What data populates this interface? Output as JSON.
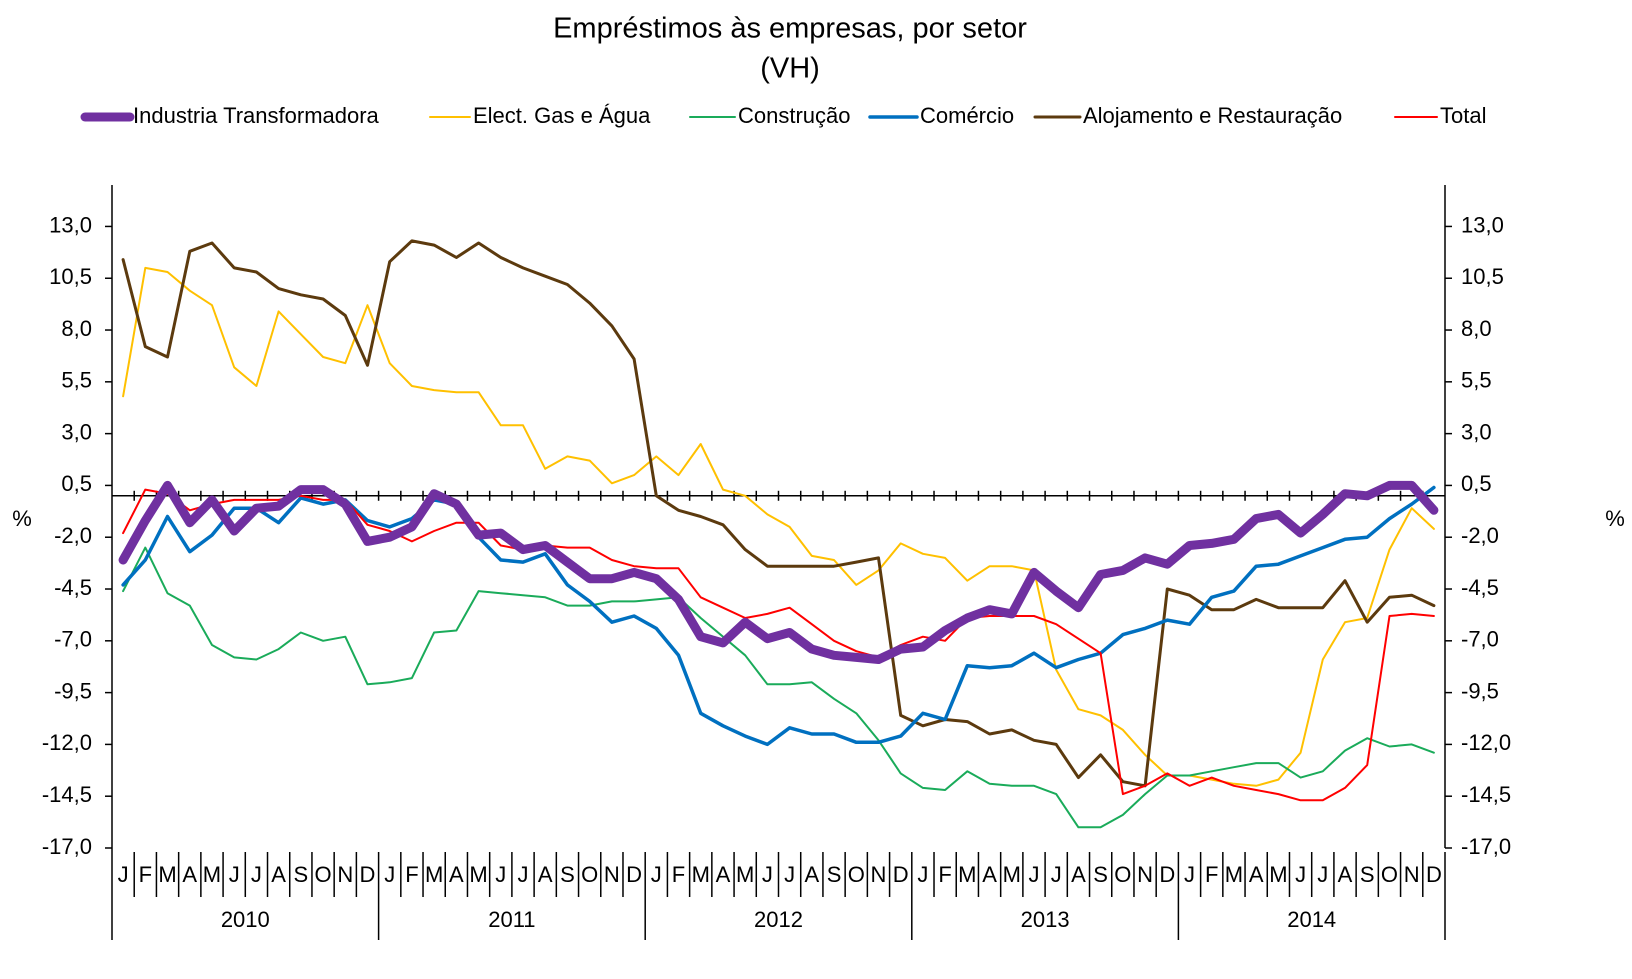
{
  "chart_data": {
    "type": "line",
    "title": "Empréstimos às empresas, por setor",
    "subtitle": "(VH)",
    "y_label": "%",
    "categories": [
      "J",
      "F",
      "M",
      "A",
      "M",
      "J",
      "J",
      "A",
      "S",
      "O",
      "N",
      "D",
      "J",
      "F",
      "M",
      "A",
      "M",
      "J",
      "J",
      "A",
      "S",
      "O",
      "N",
      "D",
      "J",
      "F",
      "M",
      "A",
      "M",
      "J",
      "J",
      "A",
      "S",
      "O",
      "N",
      "D",
      "J",
      "F",
      "M",
      "A",
      "M",
      "J",
      "J",
      "A",
      "S",
      "O",
      "N",
      "D",
      "J",
      "F",
      "M",
      "A",
      "M",
      "J",
      "J",
      "A",
      "S",
      "O",
      "N",
      "D"
    ],
    "year_labels": [
      "2010",
      "2011",
      "2012",
      "2013",
      "2014"
    ],
    "ylim": [
      -17,
      15
    ],
    "yticks": [
      {
        "value": 13,
        "label": "13,0"
      },
      {
        "value": 10.5,
        "label": "10,5"
      },
      {
        "value": 8,
        "label": "8,0"
      },
      {
        "value": 5.5,
        "label": "5,5"
      },
      {
        "value": 3,
        "label": "3,0"
      },
      {
        "value": 0.5,
        "label": "0,5"
      },
      {
        "value": -2,
        "label": "-2,0"
      },
      {
        "value": -4.5,
        "label": "-4,5"
      },
      {
        "value": -7,
        "label": "-7,0"
      },
      {
        "value": -9.5,
        "label": "-9,5"
      },
      {
        "value": -12,
        "label": "-12,0"
      },
      {
        "value": -14.5,
        "label": "-14,5"
      },
      {
        "value": -17,
        "label": "-17,0"
      }
    ],
    "series": [
      {
        "name": "Industria Transformadora",
        "color": "#7030a0",
        "values": [
          -3.1,
          -1.2,
          0.5,
          -1.3,
          -0.2,
          -1.7,
          -0.6,
          -0.5,
          0.3,
          0.3,
          -0.4,
          -2.2,
          -2.0,
          -1.5,
          0.1,
          -0.4,
          -1.9,
          -1.8,
          -2.6,
          -2.4,
          -3.2,
          -4.0,
          -4.0,
          -3.7,
          -4.0,
          -5.0,
          -6.8,
          -7.1,
          -6.1,
          -6.9,
          -6.6,
          -7.4,
          -7.7,
          -7.8,
          -7.9,
          -7.4,
          -7.3,
          -6.5,
          -5.9,
          -5.5,
          -5.7,
          -3.7,
          -4.6,
          -5.4,
          -3.8,
          -3.6,
          -3.0,
          -3.3,
          -2.4,
          -2.3,
          -2.1,
          -1.1,
          -0.9,
          -1.8,
          -0.9,
          0.1,
          0.0,
          0.5,
          0.5,
          -0.7
        ]
      },
      {
        "name": "Elect. Gas e Água",
        "color": "#ffc000",
        "values": [
          4.8,
          11.0,
          10.8,
          9.9,
          9.2,
          6.2,
          5.3,
          8.9,
          7.8,
          6.7,
          6.4,
          9.2,
          6.4,
          5.3,
          5.1,
          5.0,
          5.0,
          3.4,
          3.4,
          1.3,
          1.9,
          1.7,
          0.6,
          1.0,
          1.9,
          1.0,
          2.5,
          0.3,
          0.0,
          -0.9,
          -1.5,
          -2.9,
          -3.1,
          -4.3,
          -3.6,
          -2.3,
          -2.8,
          -3.0,
          -4.1,
          -3.4,
          -3.4,
          -3.6,
          -8.4,
          -10.3,
          -10.6,
          -11.3,
          -12.5,
          -13.5,
          -13.5,
          -13.7,
          -13.9,
          -14.0,
          -13.7,
          -12.4,
          -7.9,
          -6.1,
          -5.9,
          -2.6,
          -0.6,
          -1.6
        ]
      },
      {
        "name": "Construção",
        "color": "#1aab5a",
        "values": [
          -4.6,
          -2.5,
          -4.7,
          -5.3,
          -7.2,
          -7.8,
          -7.9,
          -7.4,
          -6.6,
          -7.0,
          -6.8,
          -9.1,
          -9.0,
          -8.8,
          -6.6,
          -6.5,
          -4.6,
          -4.7,
          -4.8,
          -4.9,
          -5.3,
          -5.3,
          -5.1,
          -5.1,
          -5.0,
          -4.9,
          -5.9,
          -6.8,
          -7.7,
          -9.1,
          -9.1,
          -9.0,
          -9.8,
          -10.5,
          -11.8,
          -13.4,
          -14.1,
          -14.2,
          -13.3,
          -13.9,
          -14.0,
          -14.0,
          -14.4,
          -16.0,
          -16.0,
          -15.4,
          -14.4,
          -13.5,
          -13.5,
          -13.3,
          -13.1,
          -12.9,
          -12.9,
          -13.6,
          -13.3,
          -12.3,
          -11.7,
          -12.1,
          -12.0,
          -12.4
        ]
      },
      {
        "name": "Comércio",
        "color": "#0070c0",
        "values": [
          -4.3,
          -3.1,
          -1.0,
          -2.7,
          -1.9,
          -0.6,
          -0.6,
          -1.3,
          -0.1,
          -0.4,
          -0.2,
          -1.2,
          -1.5,
          -1.1,
          -0.2,
          -0.4,
          -2.0,
          -3.1,
          -3.2,
          -2.8,
          -4.3,
          -5.1,
          -6.1,
          -5.8,
          -6.4,
          -7.7,
          -10.5,
          -11.1,
          -11.6,
          -12.0,
          -11.2,
          -11.5,
          -11.5,
          -11.9,
          -11.9,
          -11.6,
          -10.5,
          -10.8,
          -8.2,
          -8.3,
          -8.2,
          -7.6,
          -8.3,
          -7.9,
          -7.6,
          -6.7,
          -6.4,
          -6.0,
          -6.2,
          -4.9,
          -4.6,
          -3.4,
          -3.3,
          -2.9,
          -2.5,
          -2.1,
          -2.0,
          -1.1,
          -0.4,
          0.4
        ]
      },
      {
        "name": "Alojamento e Restauração",
        "color": "#5c3a0e",
        "values": [
          11.4,
          7.2,
          6.7,
          11.8,
          12.2,
          11.0,
          10.8,
          10.0,
          9.7,
          9.5,
          8.7,
          6.3,
          11.3,
          12.3,
          12.1,
          11.5,
          12.2,
          11.5,
          11.0,
          10.6,
          10.2,
          9.3,
          8.2,
          6.6,
          0.0,
          -0.7,
          -1.0,
          -1.4,
          -2.6,
          -3.4,
          -3.4,
          -3.4,
          -3.4,
          -3.2,
          -3.0,
          -10.6,
          -11.1,
          -10.8,
          -10.9,
          -11.5,
          -11.3,
          -11.8,
          -12.0,
          -13.6,
          -12.5,
          -13.8,
          -14.0,
          -4.5,
          -4.8,
          -5.5,
          -5.5,
          -5.0,
          -5.4,
          -5.4,
          -5.4,
          -4.1,
          -6.1,
          -4.9,
          -4.8,
          -5.3
        ]
      },
      {
        "name": "Total",
        "color": "#ff0000",
        "values": [
          -1.8,
          0.3,
          0.1,
          -0.7,
          -0.4,
          -0.2,
          -0.2,
          -0.2,
          0.0,
          -0.2,
          -0.2,
          -1.4,
          -1.7,
          -2.2,
          -1.7,
          -1.3,
          -1.3,
          -2.4,
          -2.6,
          -2.4,
          -2.5,
          -2.5,
          -3.1,
          -3.4,
          -3.5,
          -3.5,
          -4.9,
          -5.4,
          -5.9,
          -5.7,
          -5.4,
          -6.2,
          -7.0,
          -7.5,
          -7.8,
          -7.2,
          -6.8,
          -7.0,
          -5.9,
          -5.8,
          -5.8,
          -5.8,
          -6.2,
          -6.9,
          -7.6,
          -14.4,
          -14.0,
          -13.4,
          -14.0,
          -13.6,
          -14.0,
          -14.2,
          -14.4,
          -14.7,
          -14.7,
          -14.1,
          -13.0,
          -5.8,
          -5.7,
          -5.8
        ]
      }
    ]
  }
}
